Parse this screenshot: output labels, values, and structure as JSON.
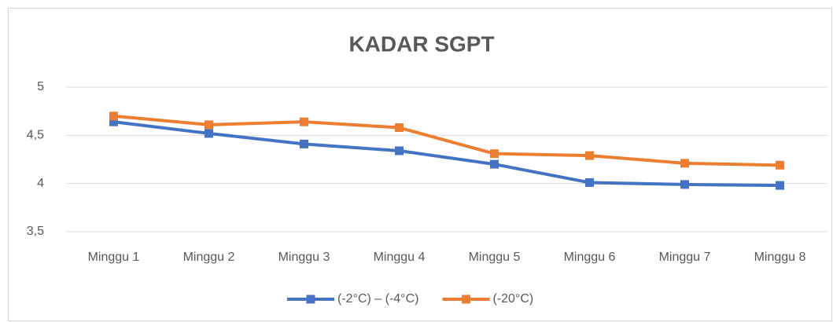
{
  "chart_data": {
    "type": "line",
    "title": "KADAR SGPT",
    "categories": [
      "Minggu 1",
      "Minggu 2",
      "Minggu 3",
      "Minggu 4",
      "Minggu 5",
      "Minggu 6",
      "Minggu 7",
      "Minggu 8"
    ],
    "series": [
      {
        "name": "(-2°C) – (-4°C)",
        "color": "#4472c4",
        "values": [
          4.64,
          4.52,
          4.41,
          4.34,
          4.2,
          4.01,
          3.99,
          3.98
        ]
      },
      {
        "name": "(-20°C)",
        "color": "#ed7d31",
        "values": [
          4.7,
          4.61,
          4.64,
          4.58,
          4.31,
          4.29,
          4.21,
          4.19
        ]
      }
    ],
    "ylim": [
      3.5,
      5
    ],
    "yticks": [
      {
        "value": 3.5,
        "label": "3,5"
      },
      4,
      {
        "value": 4.5,
        "label": "4,5"
      },
      5
    ],
    "grid": true,
    "legend": "bottom"
  }
}
